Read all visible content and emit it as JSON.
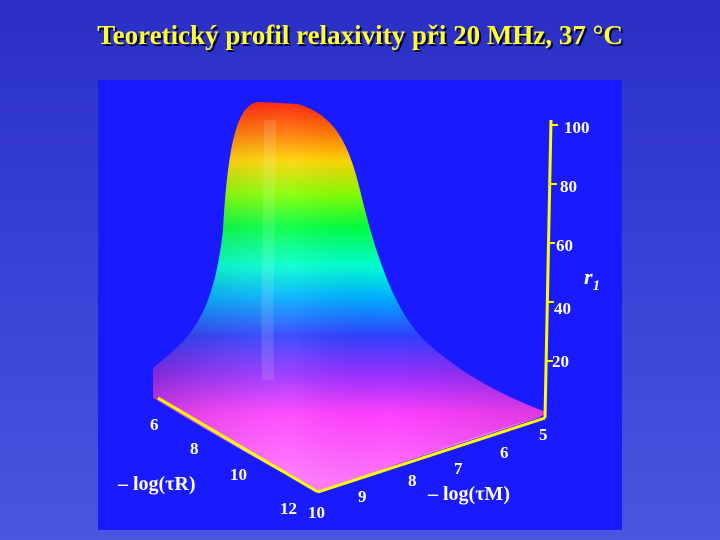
{
  "title": "Teoretický profil relaxivity při 20 MHz, 37 °C",
  "chart_data": {
    "type": "surface",
    "title": "Teoretický profil relaxivity při 20 MHz, 37 °C",
    "z_axis": {
      "label_main": "r",
      "label_sub": "1",
      "ticks": [
        "100",
        "80",
        "60",
        "40",
        "20"
      ]
    },
    "x_axis": {
      "label": "– log(τR)",
      "ticks": [
        "6",
        "8",
        "10",
        "12"
      ]
    },
    "y_axis": {
      "label": "– log(τM)",
      "ticks": [
        "5",
        "6",
        "7",
        "8",
        "9",
        "10"
      ]
    },
    "colors": {
      "peak": "#ff2a00",
      "high": "#ffd400",
      "mid_high": "#00ff40",
      "mid": "#00e0ff",
      "mid_low": "#2050ff",
      "low": "#ff30ff"
    }
  }
}
